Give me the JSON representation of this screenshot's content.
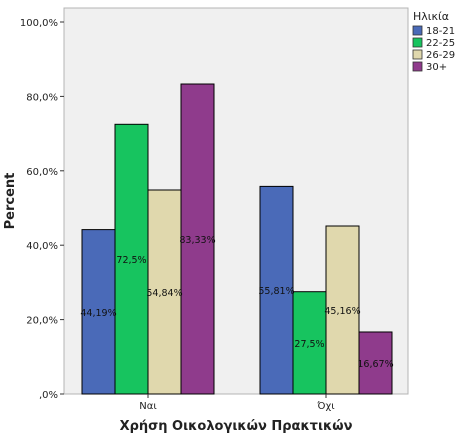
{
  "chart_data": {
    "type": "bar",
    "categories": [
      "Ναι",
      "Όχι"
    ],
    "series": [
      {
        "name": "18-21",
        "color": "#4a6ab8",
        "values": [
          44.19,
          55.81
        ],
        "labels": [
          "44,19%",
          "55,81%"
        ]
      },
      {
        "name": "22-25",
        "color": "#17c45f",
        "values": [
          72.5,
          27.5
        ],
        "labels": [
          "72,5%",
          "27,5%"
        ]
      },
      {
        "name": "26-29",
        "color": "#e0d8ad",
        "values": [
          54.84,
          45.16
        ],
        "labels": [
          "54,84%",
          "45,16%"
        ]
      },
      {
        "name": "30+",
        "color": "#8f3b8c",
        "values": [
          83.33,
          16.67
        ],
        "labels": [
          "83,33%",
          "16,67%"
        ]
      }
    ],
    "xlabel": "Χρήση Οικολογικών Πρακτικών",
    "ylabel": "Percent",
    "ylim": [
      0,
      100
    ],
    "yticks": [
      0,
      20,
      40,
      60,
      80,
      100
    ],
    "ytick_labels": [
      ",0%",
      "20,0%",
      "40,0%",
      "60,0%",
      "80,0%",
      "100,0%"
    ],
    "legend": {
      "title": "Ηλικία",
      "position": "top-right"
    },
    "plot_background": "#f0f0f0"
  }
}
